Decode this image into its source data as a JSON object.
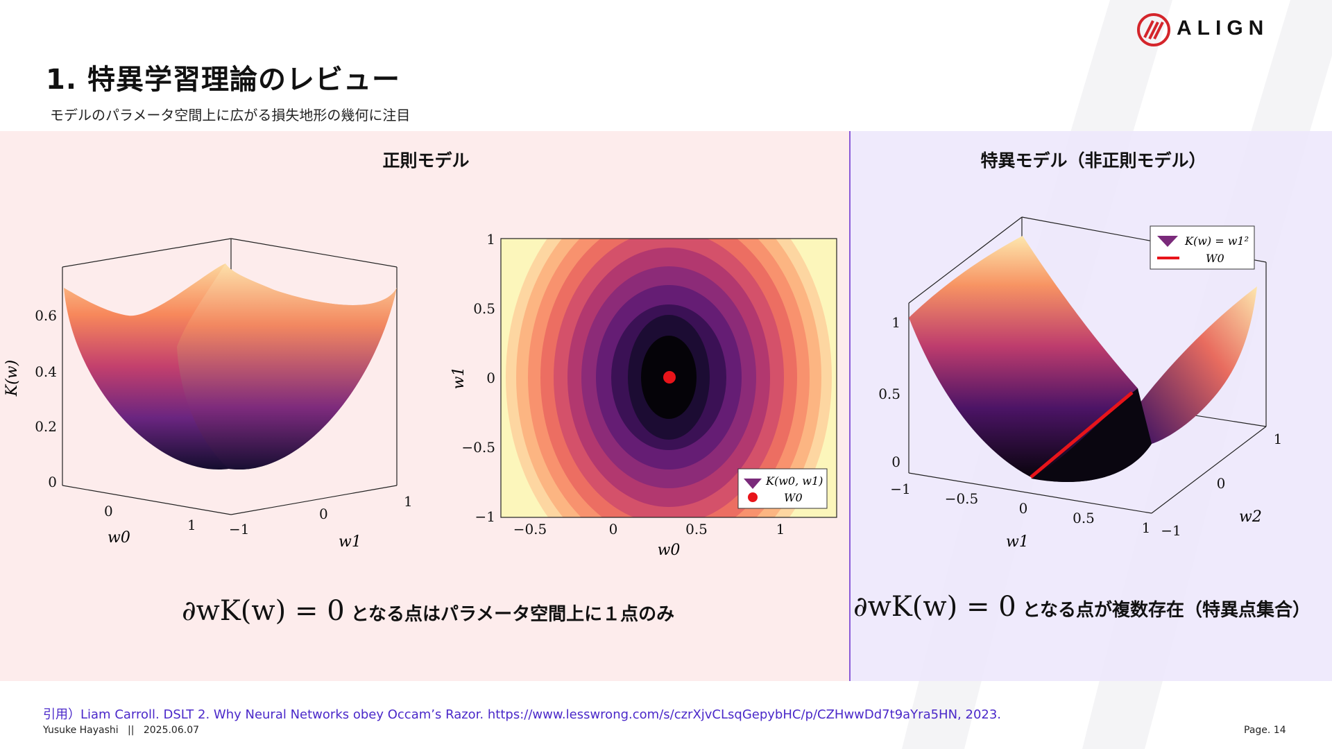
{
  "header": {
    "title": "1. 特異学習理論のレビュー",
    "subtitle": "モデルのパラメータ空間上に広がる損失地形の幾何に注目",
    "logo_text": "ALIGN"
  },
  "left_panel": {
    "title": "正則モデル",
    "equation": "∂wK(w) = 0",
    "caption": "となる点はパラメータ空間上に１点のみ"
  },
  "right_panel": {
    "title": "特異モデル（非正則モデル）",
    "equation": "∂wK(w) = 0",
    "caption": "となる点が複数存在（特異点集合）"
  },
  "chart_data": [
    {
      "type": "surface",
      "zlabel": "K(w)",
      "xlabel": "w0",
      "ylabel": "w1",
      "zticks": [
        "0",
        "0.2",
        "0.4",
        "0.6"
      ],
      "xticks": [
        "0",
        "1"
      ],
      "yticks": [
        "−1",
        "0",
        "1"
      ],
      "colormap": "magma"
    },
    {
      "type": "contour",
      "xlabel": "w0",
      "ylabel": "w1",
      "xticks": [
        "−0.5",
        "0",
        "0.5",
        "1"
      ],
      "yticks": [
        "−1",
        "−0.5",
        "0",
        "0.5",
        "1"
      ],
      "minimum": {
        "w0": 0.33,
        "w1": 0
      },
      "legend": [
        "K(w0, w1)",
        "W0"
      ],
      "legend_position": "bottom-right",
      "colormap": "magma"
    },
    {
      "type": "surface",
      "xlabel": "w1",
      "ylabel": "w2",
      "zticks": [
        "0",
        "0.5",
        "1"
      ],
      "xticks": [
        "−1",
        "−0.5",
        "0",
        "0.5",
        "1"
      ],
      "yticks": [
        "−1",
        "0",
        "1"
      ],
      "legend": [
        "K(w) = w1²",
        "W0"
      ],
      "legend_position": "top-right",
      "colormap": "magma"
    }
  ],
  "citation": "引用）Liam Carroll. DSLT 2. Why Neural Networks obey Occam’s Razor. https://www.lesswrong.com/s/czrXjvCLsqGepybHC/p/CZHwwDd7t9aYra5HN, 2023.",
  "footer": {
    "author": "Yusuke Hayashi",
    "separator": "||",
    "date": "2025.06.07",
    "page": "Page. 14"
  },
  "colors": {
    "accent": "#8a5bd8",
    "citation": "#4a28c9",
    "left_bg": "#fdecec",
    "right_bg": "#ece6fb",
    "minimum_marker": "#e8141a"
  }
}
